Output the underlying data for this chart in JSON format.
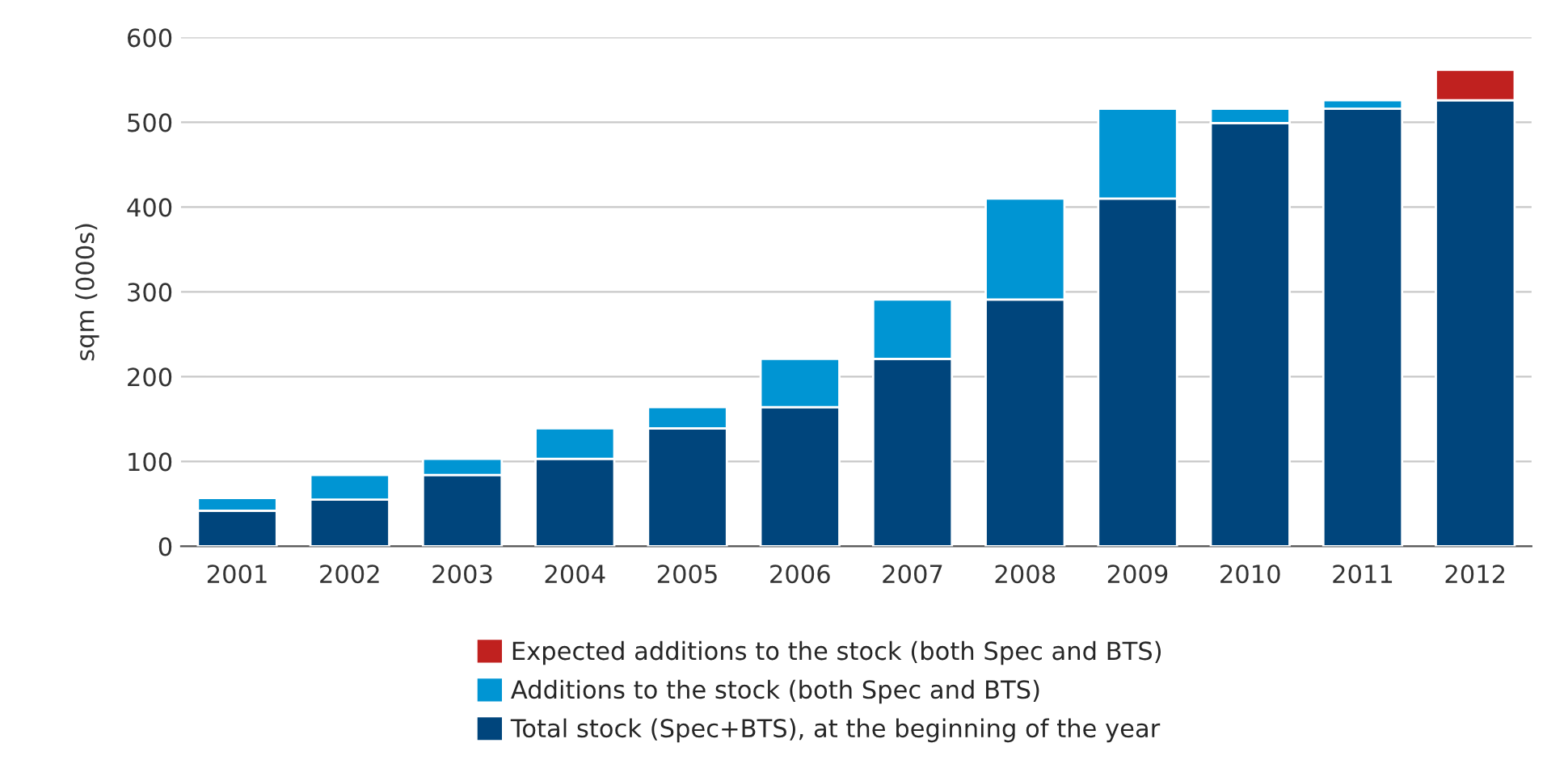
{
  "chart_data": {
    "type": "bar",
    "stacked": true,
    "ylabel": "sqm (000s)",
    "categories": [
      "2001",
      "2002",
      "2003",
      "2004",
      "2005",
      "2006",
      "2007",
      "2008",
      "2009",
      "2010",
      "2011",
      "2012"
    ],
    "series": [
      {
        "name": "Total stock (Spec+BTS), at the beginning of the year",
        "color": "#00457c",
        "values": [
          42,
          55,
          84,
          103,
          139,
          164,
          221,
          291,
          410,
          499,
          516,
          526
        ]
      },
      {
        "name": "Additions to the stock (both Spec and BTS)",
        "color": "#0095d3",
        "values": [
          15,
          29,
          19,
          36,
          25,
          57,
          70,
          119,
          106,
          17,
          10,
          null
        ]
      },
      {
        "name": "Expected additions to the stock (both Spec and BTS)",
        "color": "#c0211f",
        "values": [
          null,
          null,
          null,
          null,
          null,
          null,
          null,
          null,
          null,
          null,
          null,
          36
        ]
      }
    ],
    "ylim": [
      0,
      600
    ],
    "yticks": [
      0,
      100,
      200,
      300,
      400,
      500,
      600
    ],
    "grid": "y",
    "legend": "bottom"
  }
}
